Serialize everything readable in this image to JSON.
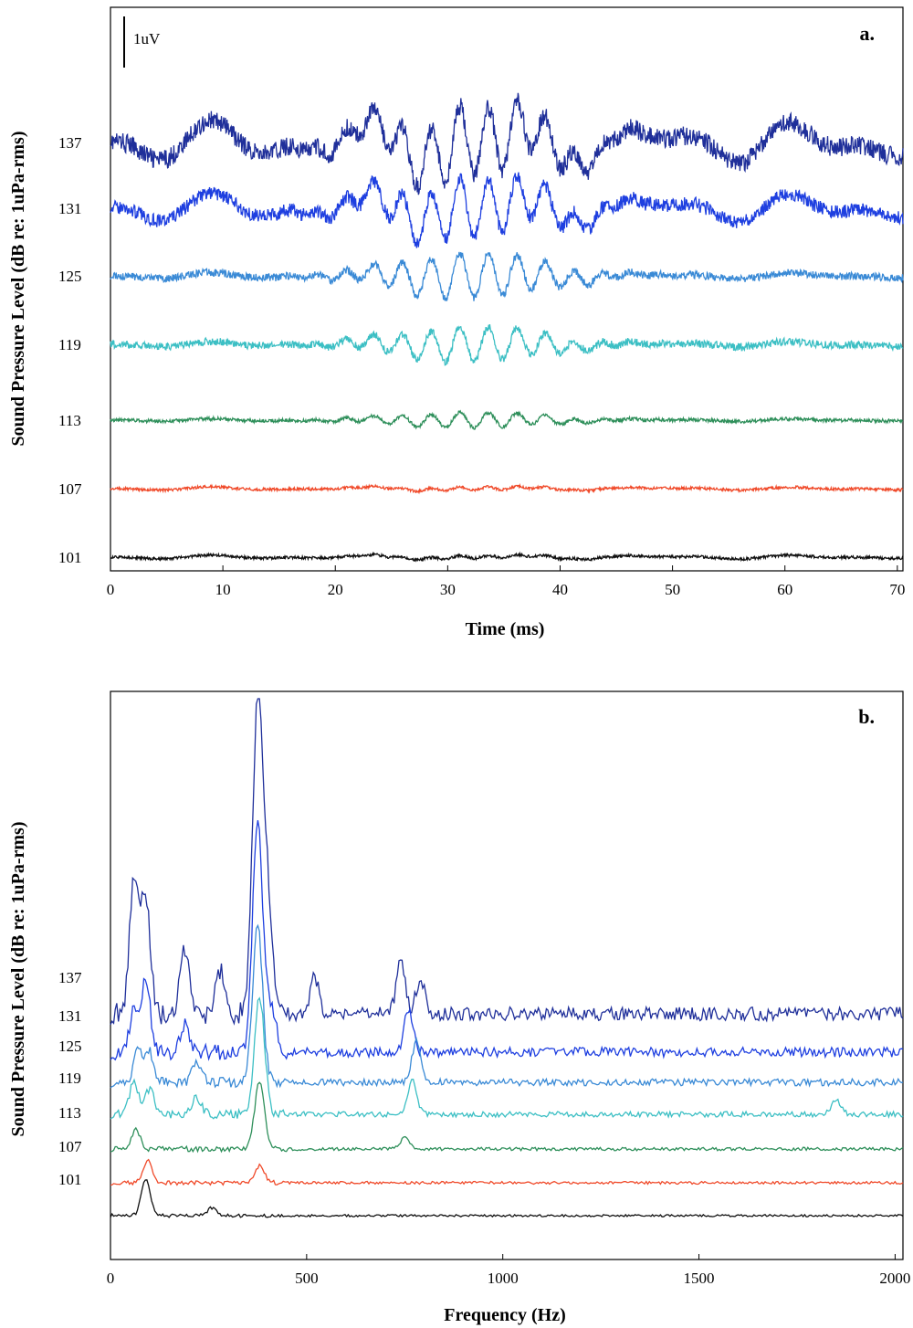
{
  "chart_data": [
    {
      "type": "line",
      "panel_label": "a.",
      "xlabel": "Time (ms)",
      "ylabel": "Sound Pressure Level (dB re: 1uPa-rms)",
      "xlim": [
        0,
        70.5
      ],
      "xticks": [
        0,
        10,
        20,
        30,
        40,
        50,
        60,
        70
      ],
      "scale_bar_label": "1uV",
      "series": [
        {
          "name": "137",
          "color": "#1f2f9a",
          "kind": "time",
          "baseline": 137,
          "amp": 1.0,
          "noise": 0.55,
          "low": 0.65
        },
        {
          "name": "131",
          "color": "#1e3fe0",
          "kind": "time",
          "baseline": 131,
          "amp": 0.85,
          "noise": 0.4,
          "low": 0.45
        },
        {
          "name": "125",
          "color": "#3a8ad6",
          "kind": "time",
          "baseline": 125,
          "amp": 0.65,
          "noise": 0.22,
          "low": 0.1
        },
        {
          "name": "119",
          "color": "#3cbfc4",
          "kind": "time",
          "baseline": 119,
          "amp": 0.5,
          "noise": 0.22,
          "low": 0.08
        },
        {
          "name": "113",
          "color": "#2e8f5a",
          "kind": "time",
          "baseline": 113,
          "amp": 0.22,
          "noise": 0.1,
          "low": 0.04
        },
        {
          "name": "107",
          "color": "#f04a2a",
          "kind": "time",
          "baseline": 107,
          "amp": 0.05,
          "noise": 0.08,
          "low": 0.05
        },
        {
          "name": "101",
          "color": "#101010",
          "kind": "time",
          "baseline": 101,
          "amp": 0.04,
          "noise": 0.08,
          "low": 0.06
        }
      ]
    },
    {
      "type": "line",
      "panel_label": "b.",
      "xlabel": "Frequency (Hz)",
      "ylabel": "Sound Pressure Level (dB re: 1uPa-rms)",
      "xlim": [
        0,
        2020
      ],
      "xticks": [
        0,
        500,
        1000,
        1500,
        2000
      ],
      "series": [
        {
          "name": "137",
          "color": "#1f2f9a",
          "kind": "freq",
          "baseline": 137,
          "peaks": [
            [
              60,
              4.8
            ],
            [
              90,
              4.4
            ],
            [
              190,
              2.5
            ],
            [
              280,
              1.6
            ],
            [
              375,
              11.3
            ],
            [
              400,
              4.0
            ],
            [
              520,
              1.3
            ],
            [
              740,
              1.9
            ],
            [
              790,
              1.2
            ]
          ],
          "noise": 0.5
        },
        {
          "name": "131",
          "color": "#1e3fe0",
          "kind": "freq",
          "baseline": 131,
          "peaks": [
            [
              60,
              1.6
            ],
            [
              90,
              2.6
            ],
            [
              190,
              1.0
            ],
            [
              375,
              8.5
            ],
            [
              410,
              1.6
            ],
            [
              760,
              1.6
            ]
          ],
          "noise": 0.35
        },
        {
          "name": "125",
          "color": "#3a8ad6",
          "kind": "freq",
          "baseline": 125,
          "peaks": [
            [
              70,
              1.2
            ],
            [
              100,
              1.1
            ],
            [
              220,
              0.7
            ],
            [
              375,
              5.7
            ],
            [
              780,
              1.5
            ]
          ],
          "noise": 0.25
        },
        {
          "name": "119",
          "color": "#3cbfc4",
          "kind": "freq",
          "baseline": 119,
          "peaks": [
            [
              60,
              1.2
            ],
            [
              100,
              0.9
            ],
            [
              220,
              0.6
            ],
            [
              380,
              4.3
            ],
            [
              770,
              1.2
            ],
            [
              1850,
              0.5
            ]
          ],
          "noise": 0.2
        },
        {
          "name": "113",
          "color": "#2e8f5a",
          "kind": "freq",
          "baseline": 113,
          "peaks": [
            [
              65,
              0.7
            ],
            [
              380,
              2.4
            ],
            [
              750,
              0.4
            ]
          ],
          "noise": 0.12
        },
        {
          "name": "107",
          "color": "#f04a2a",
          "kind": "freq",
          "baseline": 107,
          "peaks": [
            [
              95,
              0.8
            ],
            [
              380,
              0.6
            ]
          ],
          "noise": 0.1
        },
        {
          "name": "101",
          "color": "#101010",
          "kind": "freq",
          "baseline": 101,
          "peaks": [
            [
              90,
              1.3
            ],
            [
              260,
              0.3
            ]
          ],
          "noise": 0.08
        }
      ]
    }
  ]
}
